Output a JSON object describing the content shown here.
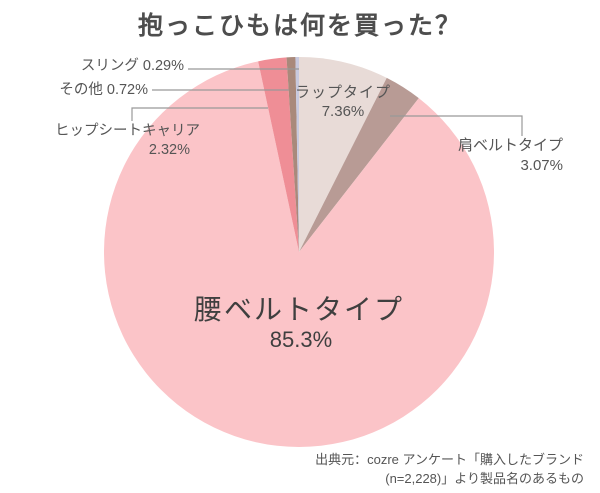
{
  "title": "抱っこひもは何を買った？",
  "chart_data": {
    "type": "pie",
    "title": "抱っこひもは何を買った？",
    "unit": "%",
    "direction": "clockwise",
    "start_angle_deg": 0,
    "legend_position": "callout-labels",
    "slices": [
      {
        "id": "wrap-type",
        "label": "ラップタイプ",
        "value": 7.36,
        "display": "7.36%",
        "color": "#E8DBD7"
      },
      {
        "id": "shoulder-belt-type",
        "label": "肩ベルトタイプ",
        "value": 3.07,
        "display": "3.07%",
        "color": "#B89B95"
      },
      {
        "id": "waist-belt-type",
        "label": "腰ベルトタイプ",
        "value": 85.3,
        "display": "85.3%",
        "color": "#FBC4C8"
      },
      {
        "id": "hip-seat-carrier",
        "label": "ヒップシートキャリア",
        "value": 2.32,
        "display": "2.32%",
        "color": "#EF8E96"
      },
      {
        "id": "other",
        "label": "その他",
        "value": 0.72,
        "display": "0.72%",
        "color": "#A9897B"
      },
      {
        "id": "sling",
        "label": "スリング",
        "value": 0.29,
        "display": "0.29%",
        "color": "#C8C9DE"
      }
    ]
  },
  "source": {
    "line1": "出典元：cozre アンケート「購入したブランド",
    "line2": "(n=2,228)」より製品名のあるもの"
  },
  "colors": {
    "leader_line": "#999999",
    "title_text": "#4d4d4d",
    "label_text": "#555555",
    "background": "#ffffff"
  }
}
